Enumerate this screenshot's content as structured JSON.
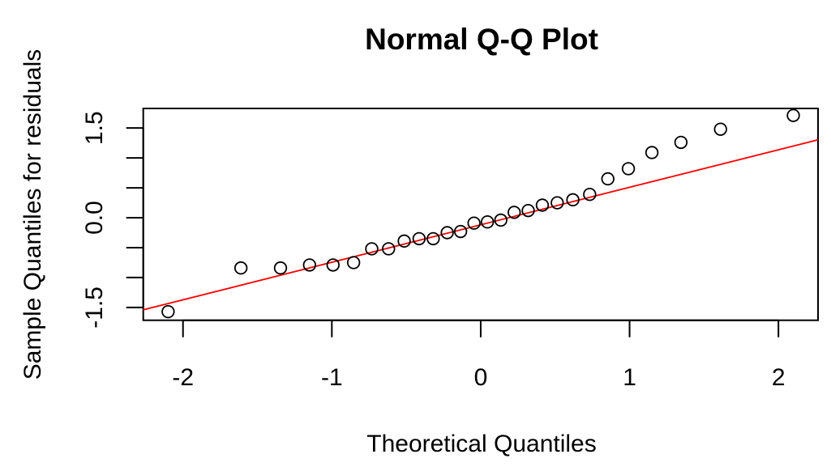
{
  "chart_data": {
    "type": "scatter",
    "title": "Normal Q-Q Plot",
    "xlabel": "Theoretical Quantiles",
    "ylabel": "Sample Quantiles for residuals",
    "xlim": [
      -2.267,
      2.266
    ],
    "ylim": [
      -1.714,
      1.827
    ],
    "xticks": [
      -2,
      -1,
      0,
      1,
      2
    ],
    "xtick_labels": [
      "-2",
      "-1",
      "0",
      "1",
      "2"
    ],
    "yticks": [
      -1.5,
      -1.0,
      -0.5,
      0.0,
      0.5,
      1.0,
      1.5
    ],
    "ytick_labels": [
      "-1.5",
      "",
      "",
      "0.0",
      "",
      "",
      "1.5"
    ],
    "grid": false,
    "series": [
      {
        "name": "residuals",
        "marker": "open-circle",
        "color": "#000000",
        "x": [
          -2.1,
          -1.611,
          -1.345,
          -1.15,
          -0.992,
          -0.854,
          -0.732,
          -0.619,
          -0.514,
          -0.414,
          -0.319,
          -0.225,
          -0.135,
          -0.045,
          0.045,
          0.135,
          0.225,
          0.319,
          0.414,
          0.514,
          0.619,
          0.732,
          0.854,
          0.992,
          1.15,
          1.345,
          1.611,
          2.1
        ],
        "y": [
          -1.57,
          -0.84,
          -0.84,
          -0.79,
          -0.79,
          -0.75,
          -0.52,
          -0.52,
          -0.39,
          -0.35,
          -0.35,
          -0.25,
          -0.23,
          -0.09,
          -0.07,
          -0.04,
          0.09,
          0.12,
          0.21,
          0.25,
          0.3,
          0.39,
          0.65,
          0.82,
          1.09,
          1.26,
          1.48,
          1.71
        ]
      }
    ],
    "reference_line": {
      "name": "qqline",
      "color": "#ff0000",
      "slope": 0.627,
      "intercept": -0.118
    }
  }
}
